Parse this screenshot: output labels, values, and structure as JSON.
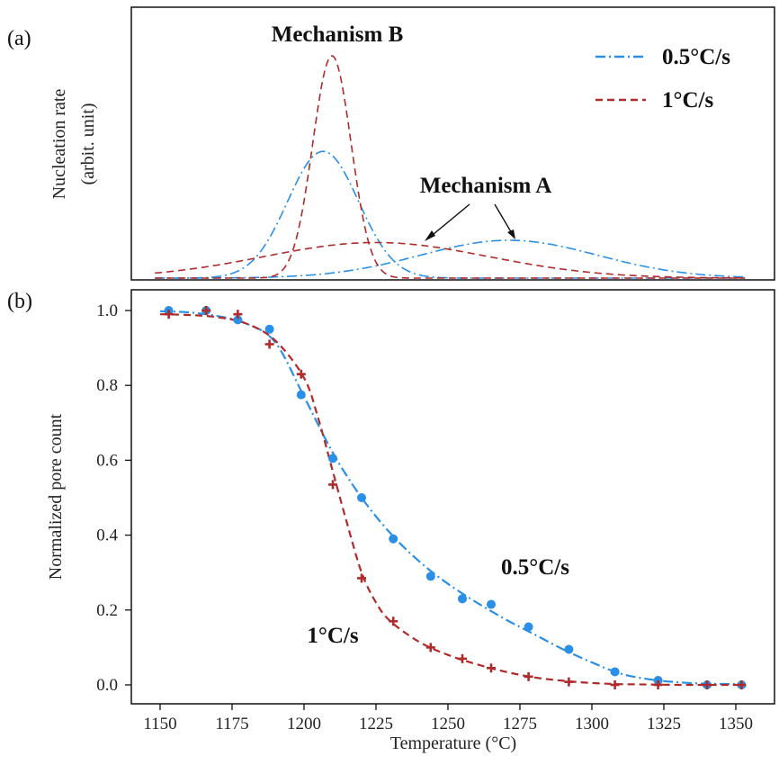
{
  "colors": {
    "slow": "#2a8fe6",
    "fast": "#b02a2a",
    "axis": "#111111"
  },
  "panel_a": {
    "label": "(a)",
    "ylabel_line1": "Nucleation rate",
    "ylabel_line2": "(arbit. unit)",
    "mechanism_b": "Mechanism B",
    "mechanism_a": "Mechanism A",
    "legend": [
      {
        "label": "0.5°C/s",
        "color": "#2a8fe6",
        "dash": "dashdot"
      },
      {
        "label": "1°C/s",
        "color": "#b02a2a",
        "dash": "dashed"
      }
    ]
  },
  "panel_b": {
    "label": "(b)",
    "xlabel": "Temperature (°C)",
    "ylabel": "Normalized pore count",
    "label_slow": "0.5°C/s",
    "label_fast": "1°C/s"
  },
  "chart_data": [
    {
      "type": "line",
      "panel": "a",
      "title": "",
      "xlabel": "",
      "ylabel": "Nucleation rate (arbit. unit)",
      "xlim": [
        1142,
        1360
      ],
      "ylim": [
        0,
        1.0
      ],
      "series": [
        {
          "name": "0.5°C/s",
          "components": [
            {
              "label": "Mechanism B",
              "center": 1207,
              "width": 12,
              "height": 0.57
            },
            {
              "label": "Mechanism A",
              "center": 1270,
              "width": 30,
              "height": 0.17
            }
          ]
        },
        {
          "name": "1°C/s",
          "components": [
            {
              "label": "Mechanism B",
              "center": 1210,
              "width": 6.5,
              "height": 1.0
            },
            {
              "label": "Mechanism A",
              "center": 1225,
              "width": 38,
              "height": 0.16
            }
          ]
        }
      ]
    },
    {
      "type": "scatter",
      "panel": "b",
      "title": "",
      "xlabel": "Temperature (°C)",
      "ylabel": "Normalized pore count",
      "xlim": [
        1142,
        1360
      ],
      "ylim": [
        -0.05,
        1.05
      ],
      "xticks": [
        1150,
        1175,
        1200,
        1225,
        1250,
        1275,
        1300,
        1325,
        1350
      ],
      "yticks": [
        0.0,
        0.2,
        0.4,
        0.6,
        0.8,
        1.0
      ],
      "series": [
        {
          "name": "0.5°C/s",
          "x": [
            1153,
            1166,
            1177,
            1188,
            1199,
            1210,
            1220,
            1231,
            1244,
            1255,
            1265,
            1278,
            1292,
            1308,
            1323,
            1340,
            1352
          ],
          "y": [
            1.0,
            1.0,
            0.975,
            0.95,
            0.775,
            0.605,
            0.5,
            0.39,
            0.29,
            0.23,
            0.215,
            0.155,
            0.095,
            0.035,
            0.012,
            0.0,
            0.0
          ]
        },
        {
          "name": "1°C/s",
          "x": [
            1153,
            1166,
            1177,
            1188,
            1199,
            1210,
            1220,
            1231,
            1244,
            1255,
            1265,
            1278,
            1292,
            1308,
            1323,
            1340,
            1352
          ],
          "y": [
            0.99,
            1.0,
            0.99,
            0.91,
            0.83,
            0.535,
            0.285,
            0.17,
            0.1,
            0.07,
            0.045,
            0.022,
            0.008,
            0.0,
            0.0,
            0.0,
            0.0
          ]
        }
      ],
      "fits": [
        {
          "name": "0.5°C/s fit",
          "x": [
            1150,
            1160,
            1170,
            1180,
            1190,
            1200,
            1210,
            1220,
            1230,
            1240,
            1250,
            1260,
            1270,
            1280,
            1290,
            1300,
            1310,
            1320,
            1330,
            1340,
            1352
          ],
          "y": [
            0.998,
            0.995,
            0.985,
            0.965,
            0.915,
            0.77,
            0.62,
            0.5,
            0.405,
            0.33,
            0.27,
            0.22,
            0.175,
            0.135,
            0.095,
            0.06,
            0.03,
            0.015,
            0.007,
            0.003,
            0.002
          ]
        },
        {
          "name": "1°C/s fit",
          "x": [
            1150,
            1160,
            1170,
            1180,
            1190,
            1200,
            1205,
            1210,
            1215,
            1220,
            1225,
            1230,
            1240,
            1250,
            1260,
            1270,
            1280,
            1290,
            1300,
            1310,
            1320,
            1330,
            1340,
            1352
          ],
          "y": [
            0.99,
            0.988,
            0.982,
            0.965,
            0.92,
            0.82,
            0.71,
            0.57,
            0.43,
            0.3,
            0.22,
            0.17,
            0.115,
            0.08,
            0.055,
            0.035,
            0.02,
            0.011,
            0.005,
            0.002,
            0.001,
            0.0,
            0.0,
            0.0
          ]
        }
      ]
    }
  ]
}
